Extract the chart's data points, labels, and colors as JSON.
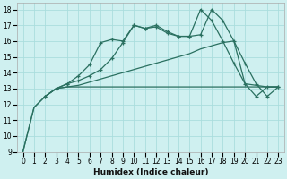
{
  "xlabel": "Humidex (Indice chaleur)",
  "ylabel": "",
  "bg_color": "#cff0f0",
  "grid_color": "#aadddd",
  "line_color": "#2a7060",
  "xlim": [
    -0.5,
    23.5
  ],
  "ylim": [
    9,
    18.4
  ],
  "yticks": [
    9,
    10,
    11,
    12,
    13,
    14,
    15,
    16,
    17,
    18
  ],
  "xticks": [
    0,
    1,
    2,
    3,
    4,
    5,
    6,
    7,
    8,
    9,
    10,
    11,
    12,
    13,
    14,
    15,
    16,
    17,
    18,
    19,
    20,
    21,
    22,
    23
  ],
  "series": [
    {
      "x": [
        0,
        1,
        2,
        3,
        4,
        5,
        6,
        7,
        8,
        9,
        10,
        11,
        12,
        13,
        14,
        15,
        16,
        17,
        18,
        19,
        20,
        21,
        22,
        23
      ],
      "y": [
        9.0,
        11.8,
        12.5,
        13.0,
        13.1,
        13.1,
        13.1,
        13.1,
        13.1,
        13.1,
        13.1,
        13.1,
        13.1,
        13.1,
        13.1,
        13.1,
        13.1,
        13.1,
        13.1,
        13.1,
        13.1,
        13.1,
        13.1,
        13.1
      ],
      "marker": false
    },
    {
      "x": [
        0,
        1,
        2,
        3,
        4,
        5,
        6,
        7,
        8,
        9,
        10,
        11,
        12,
        13,
        14,
        15,
        16,
        17,
        18,
        19,
        20,
        21,
        22,
        23
      ],
      "y": [
        9.0,
        11.8,
        12.5,
        13.0,
        13.1,
        13.2,
        13.4,
        13.6,
        13.8,
        14.0,
        14.2,
        14.4,
        14.6,
        14.8,
        15.0,
        15.2,
        15.5,
        15.7,
        15.9,
        16.0,
        13.3,
        13.2,
        13.1,
        13.1
      ],
      "marker": false
    },
    {
      "x": [
        2,
        3,
        4,
        5,
        6,
        7,
        8,
        9,
        10,
        11,
        12,
        13,
        14,
        15,
        16,
        17,
        18,
        19,
        20,
        21,
        22,
        23
      ],
      "y": [
        12.5,
        13.0,
        13.3,
        13.5,
        13.8,
        14.2,
        14.9,
        15.9,
        17.0,
        16.8,
        17.0,
        16.6,
        16.3,
        16.3,
        16.4,
        18.0,
        17.3,
        16.0,
        14.6,
        13.3,
        12.5,
        13.1
      ],
      "marker": true
    },
    {
      "x": [
        2,
        3,
        4,
        5,
        6,
        7,
        8,
        9,
        10,
        11,
        12,
        13,
        14,
        15,
        16,
        17,
        18,
        19,
        20,
        21,
        22,
        23
      ],
      "y": [
        12.5,
        13.0,
        13.3,
        13.8,
        14.5,
        15.9,
        16.1,
        16.0,
        17.0,
        16.8,
        16.9,
        16.5,
        16.3,
        16.3,
        18.0,
        17.3,
        16.0,
        14.6,
        13.3,
        12.5,
        13.1,
        13.1
      ],
      "marker": true
    }
  ]
}
